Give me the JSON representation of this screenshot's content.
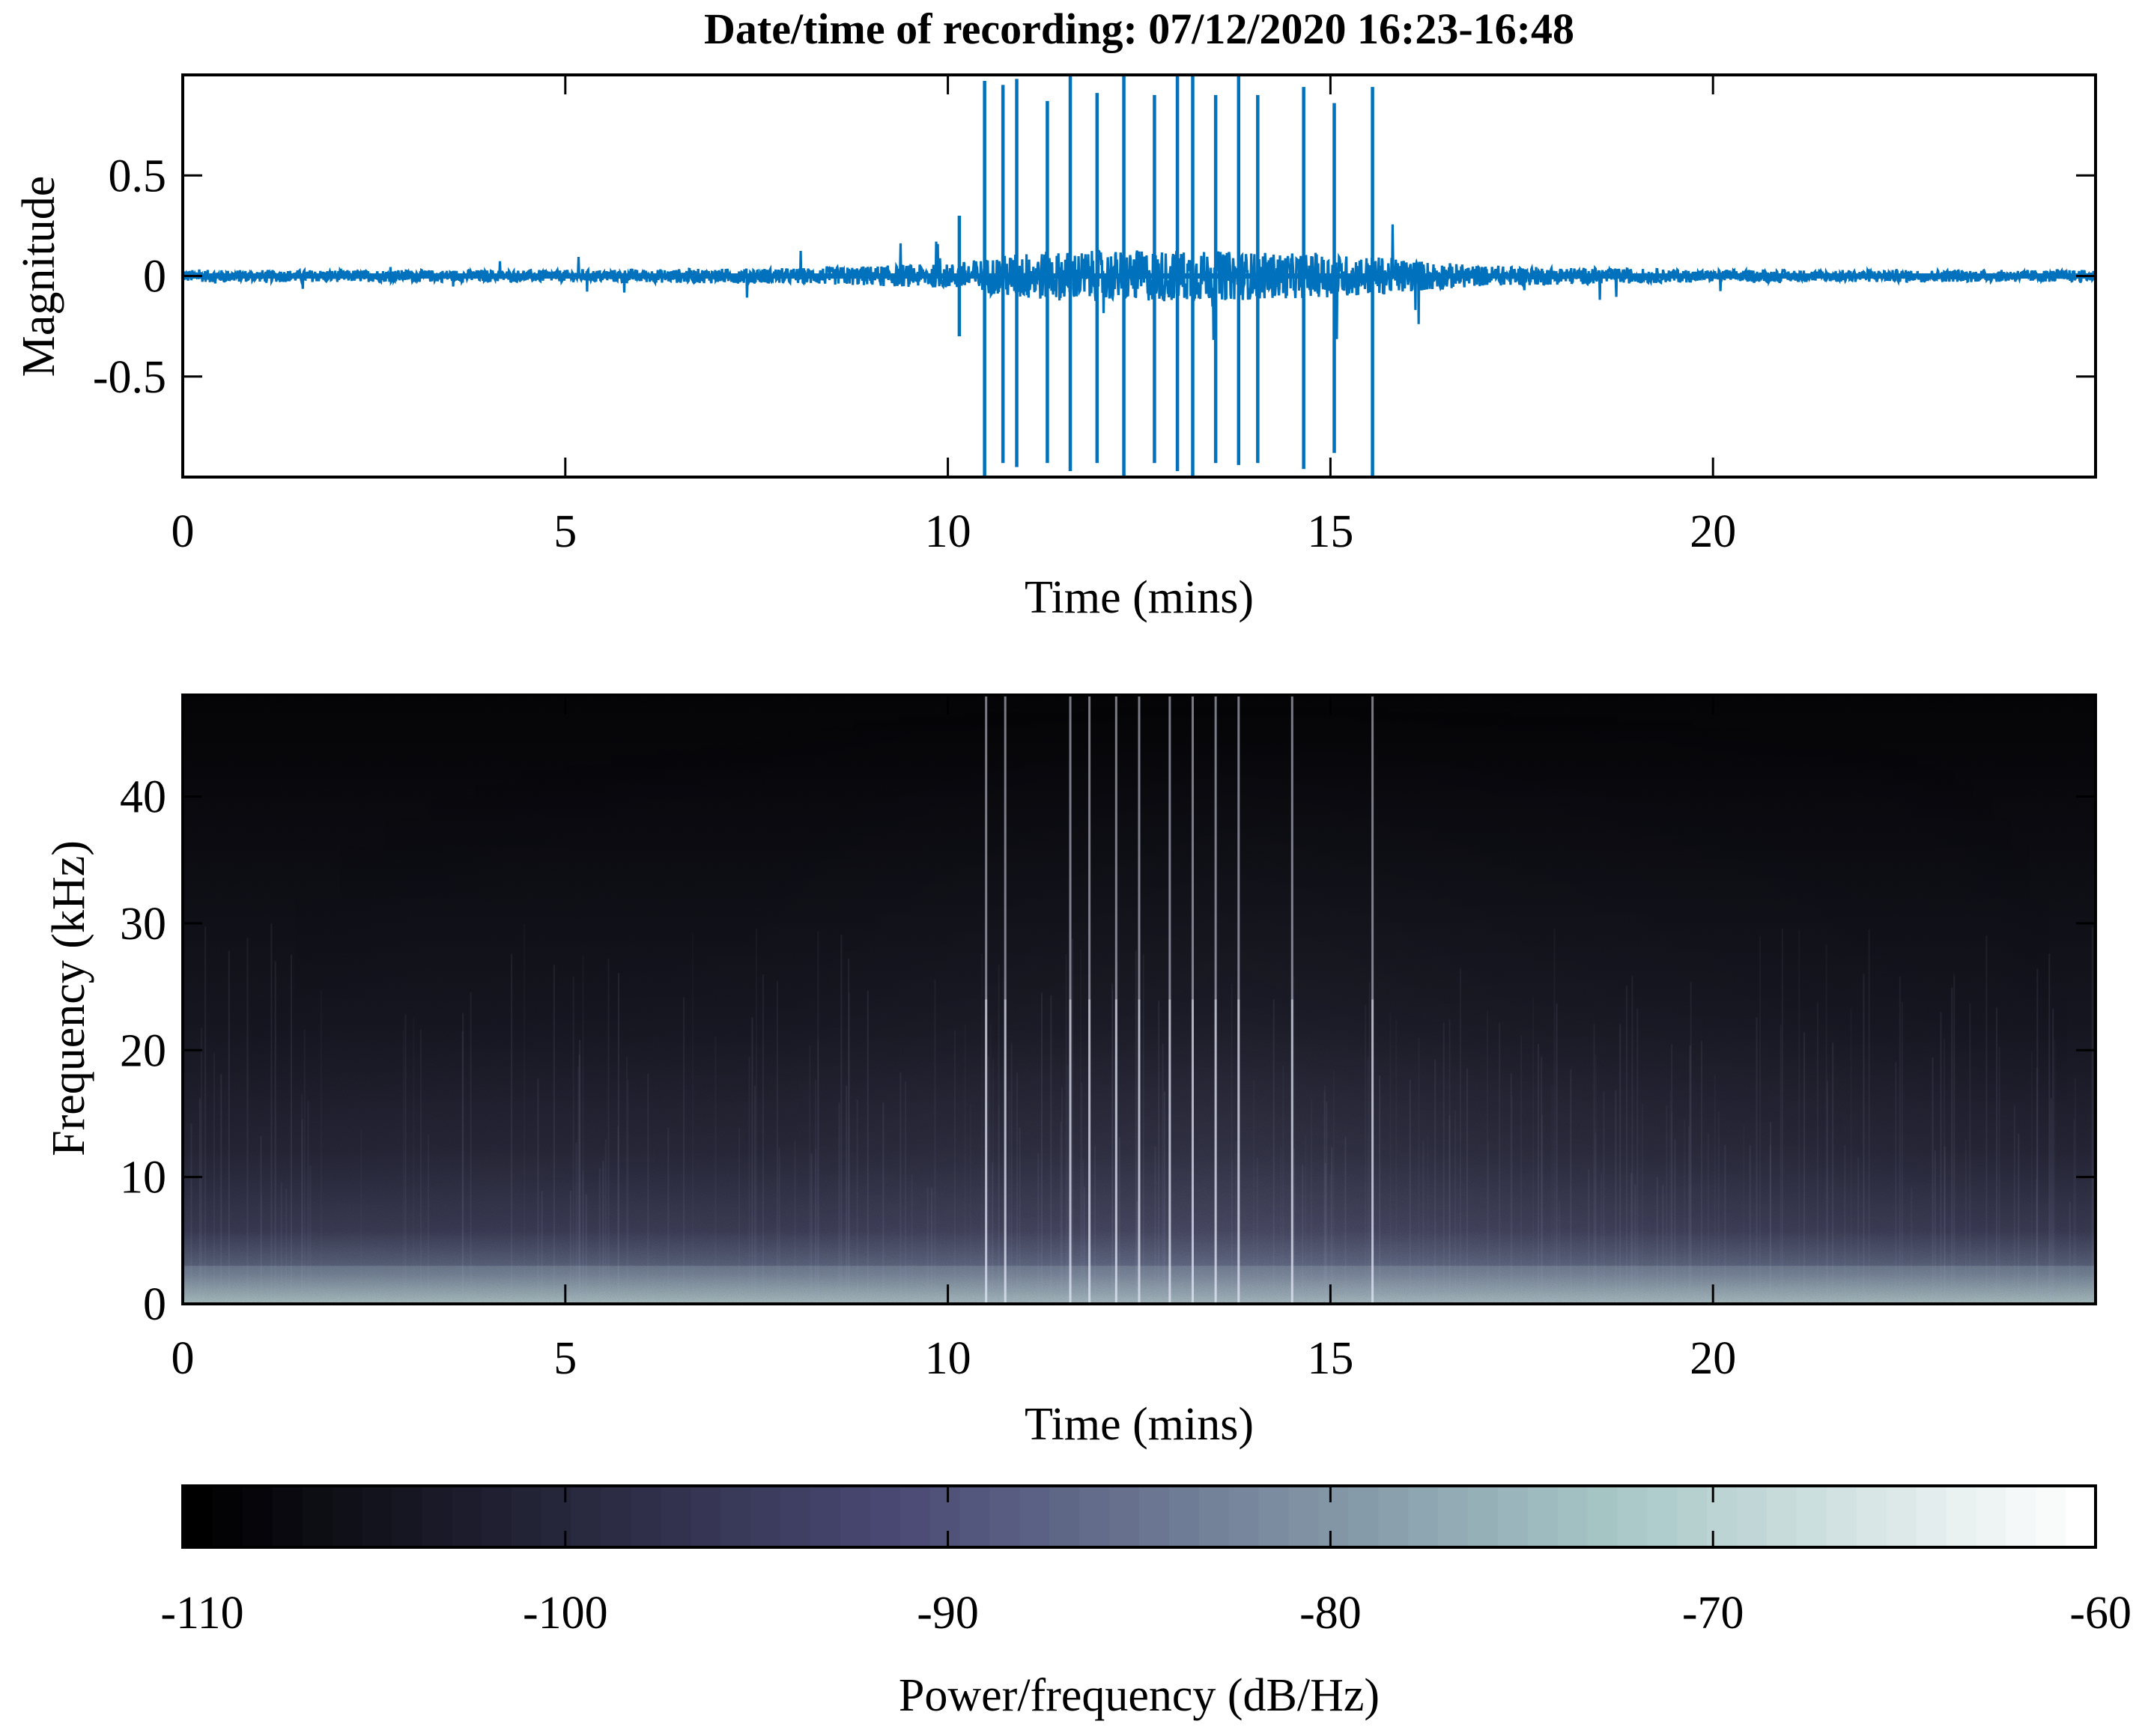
{
  "title": "Date/time of recording: 07/12/2020 16:23-16:48",
  "chart_data": [
    {
      "type": "line",
      "xlabel": "Time (mins)",
      "ylabel": "Magnitude",
      "xlim": [
        0,
        25
      ],
      "ylim": [
        -1,
        1
      ],
      "xticks": [
        0,
        5,
        10,
        15,
        20
      ],
      "xtick_labels": [
        "0",
        "5",
        "10",
        "15",
        "20"
      ],
      "yticks": [
        -0.5,
        0,
        0.5
      ],
      "ytick_labels": [
        "-0.5",
        "0",
        "0.5"
      ],
      "color": "#0072BD",
      "pulses": [
        {
          "t": 10.15,
          "amp": 0.3,
          "neg": -0.3
        },
        {
          "t": 10.48,
          "amp": 0.97,
          "neg": -1.0
        },
        {
          "t": 10.72,
          "amp": 0.95,
          "neg": -0.93
        },
        {
          "t": 10.9,
          "amp": 0.98,
          "neg": -0.95
        },
        {
          "t": 11.3,
          "amp": 0.87,
          "neg": -0.93
        },
        {
          "t": 11.6,
          "amp": 1.0,
          "neg": -0.97
        },
        {
          "t": 11.95,
          "amp": 0.91,
          "neg": -0.93
        },
        {
          "t": 12.3,
          "amp": 1.0,
          "neg": -1.0
        },
        {
          "t": 12.7,
          "amp": 0.9,
          "neg": -0.93
        },
        {
          "t": 13.0,
          "amp": 1.0,
          "neg": -0.97
        },
        {
          "t": 13.2,
          "amp": 1.0,
          "neg": -1.0
        },
        {
          "t": 13.5,
          "amp": 0.9,
          "neg": -0.93
        },
        {
          "t": 13.8,
          "amp": 1.0,
          "neg": -0.94
        },
        {
          "t": 14.05,
          "amp": 0.9,
          "neg": -0.93
        },
        {
          "t": 14.65,
          "amp": 0.94,
          "neg": -0.96
        },
        {
          "t": 15.05,
          "amp": 0.86,
          "neg": -0.88
        },
        {
          "t": 15.55,
          "amp": 0.94,
          "neg": -1.0
        }
      ],
      "noise_envelope": [
        {
          "t": 0,
          "amp": 0.03
        },
        {
          "t": 5,
          "amp": 0.03
        },
        {
          "t": 8,
          "amp": 0.04
        },
        {
          "t": 10,
          "amp": 0.06
        },
        {
          "t": 11,
          "amp": 0.12
        },
        {
          "t": 13,
          "amp": 0.13
        },
        {
          "t": 15.5,
          "amp": 0.1
        },
        {
          "t": 17,
          "amp": 0.05
        },
        {
          "t": 20,
          "amp": 0.03
        },
        {
          "t": 25,
          "amp": 0.03
        }
      ]
    },
    {
      "type": "heatmap",
      "xlabel": "Time (mins)",
      "ylabel": "Frequency (kHz)",
      "xlim": [
        0,
        25
      ],
      "ylim": [
        0,
        48
      ],
      "xticks": [
        0,
        5,
        10,
        15,
        20
      ],
      "xtick_labels": [
        "0",
        "5",
        "10",
        "15",
        "20"
      ],
      "yticks": [
        0,
        10,
        20,
        30,
        40
      ],
      "ytick_labels": [
        "0",
        "10",
        "20",
        "30",
        "40"
      ],
      "colormap": "bone",
      "clim": [
        -110,
        -60
      ],
      "colorbar_label": "Power/frequency (dB/Hz)",
      "colorbar_ticks": [
        -110,
        -100,
        -90,
        -80,
        -70,
        -60
      ],
      "colorbar_tick_labels": [
        "-110",
        "-100",
        "-90",
        "-80",
        "-70",
        "-60"
      ],
      "colorbar_location": "bottom",
      "broadband_events_mins": [
        10.5,
        10.75,
        11.6,
        11.85,
        12.2,
        12.5,
        12.9,
        13.2,
        13.5,
        13.8,
        14.5,
        15.55
      ]
    }
  ]
}
